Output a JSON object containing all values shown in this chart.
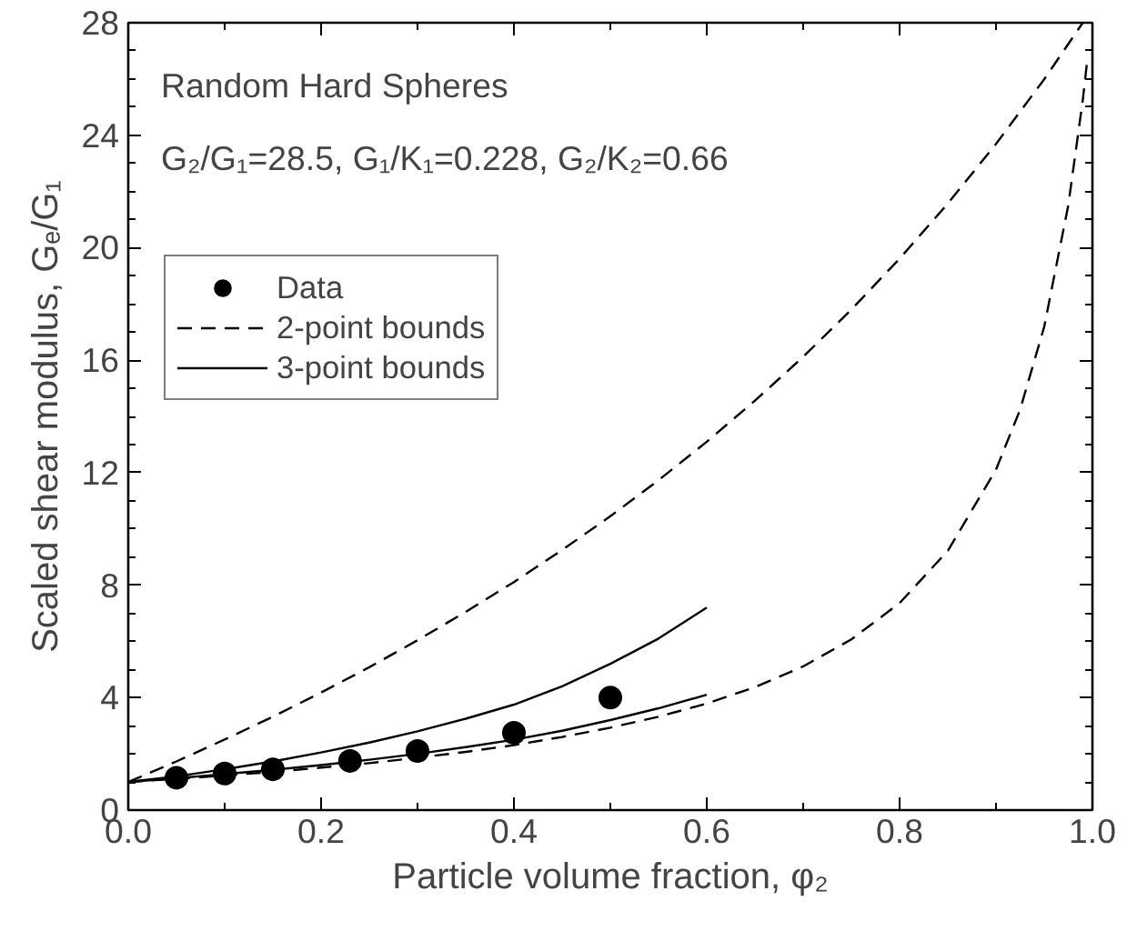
{
  "chart_data": {
    "type": "line",
    "xlabel": "Particle volume fraction, φ₂",
    "ylabel": "Scaled shear modulus, Gₑ/G₁",
    "annotations": [
      "Random Hard Spheres",
      "G₂/G₁=28.5, G₁/K₁=0.228, G₂/K₂=0.66"
    ],
    "xlim": [
      0,
      1
    ],
    "ylim": [
      0,
      28
    ],
    "xticks": [
      {
        "value": 0,
        "label": "0.0"
      },
      {
        "value": 0.2,
        "label": "0.2"
      },
      {
        "value": 0.4,
        "label": "0.4"
      },
      {
        "value": 0.6,
        "label": "0.6"
      },
      {
        "value": 0.8,
        "label": "0.8"
      },
      {
        "value": 1,
        "label": "1.0"
      }
    ],
    "yticks": [
      0,
      4,
      8,
      12,
      16,
      20,
      24,
      28
    ],
    "grid": false,
    "legend": "top left",
    "series": [
      {
        "name": "Data",
        "type": "scatter",
        "marker": "circle",
        "color": "#000000",
        "x": [
          0.05,
          0.1,
          0.15,
          0.23,
          0.3,
          0.4,
          0.5
        ],
        "values": [
          1.15,
          1.3,
          1.45,
          1.75,
          2.1,
          2.75,
          4.0
        ]
      },
      {
        "name": "2-point bounds",
        "line_style": "dashed",
        "color": "#000000",
        "x": [
          0,
          0.05,
          0.1,
          0.15,
          0.2,
          0.25,
          0.3,
          0.35,
          0.4,
          0.45,
          0.5,
          0.55,
          0.6,
          0.65,
          0.7,
          0.75,
          0.8,
          0.85,
          0.9,
          0.95,
          0.99
        ],
        "values": [
          1.0,
          1.73,
          2.51,
          3.32,
          4.18,
          5.08,
          6.04,
          7.05,
          8.11,
          9.25,
          10.45,
          11.73,
          13.1,
          14.56,
          16.12,
          17.8,
          19.61,
          21.57,
          23.69,
          25.99,
          28.0
        ]
      },
      {
        "line_style": "dashed",
        "color": "#000000",
        "x": [
          0,
          0.05,
          0.1,
          0.15,
          0.2,
          0.25,
          0.3,
          0.35,
          0.4,
          0.45,
          0.5,
          0.55,
          0.6,
          0.65,
          0.7,
          0.75,
          0.8,
          0.85,
          0.9,
          0.925,
          0.95,
          0.975,
          0.99,
          0.995
        ],
        "values": [
          1.0,
          1.11,
          1.23,
          1.36,
          1.51,
          1.67,
          1.86,
          2.07,
          2.31,
          2.6,
          2.93,
          3.32,
          3.79,
          4.37,
          5.11,
          6.07,
          7.36,
          9.22,
          12.11,
          14.24,
          17.19,
          21.52,
          25.25,
          26.78
        ]
      },
      {
        "name": "3-point bounds",
        "line_style": "solid",
        "color": "#000000",
        "x": [
          0,
          0.05,
          0.1,
          0.15,
          0.2,
          0.25,
          0.3,
          0.35,
          0.4,
          0.45,
          0.5,
          0.55,
          0.6
        ],
        "values": [
          1.0,
          1.2,
          1.45,
          1.73,
          2.05,
          2.4,
          2.8,
          3.25,
          3.75,
          4.4,
          5.2,
          6.1,
          7.2
        ]
      },
      {
        "line_style": "solid",
        "color": "#000000",
        "x": [
          0,
          0.05,
          0.1,
          0.15,
          0.2,
          0.25,
          0.3,
          0.35,
          0.4,
          0.45,
          0.5,
          0.55,
          0.6
        ],
        "values": [
          1.0,
          1.13,
          1.28,
          1.43,
          1.6,
          1.79,
          2.0,
          2.24,
          2.5,
          2.82,
          3.2,
          3.62,
          4.1
        ]
      }
    ]
  }
}
